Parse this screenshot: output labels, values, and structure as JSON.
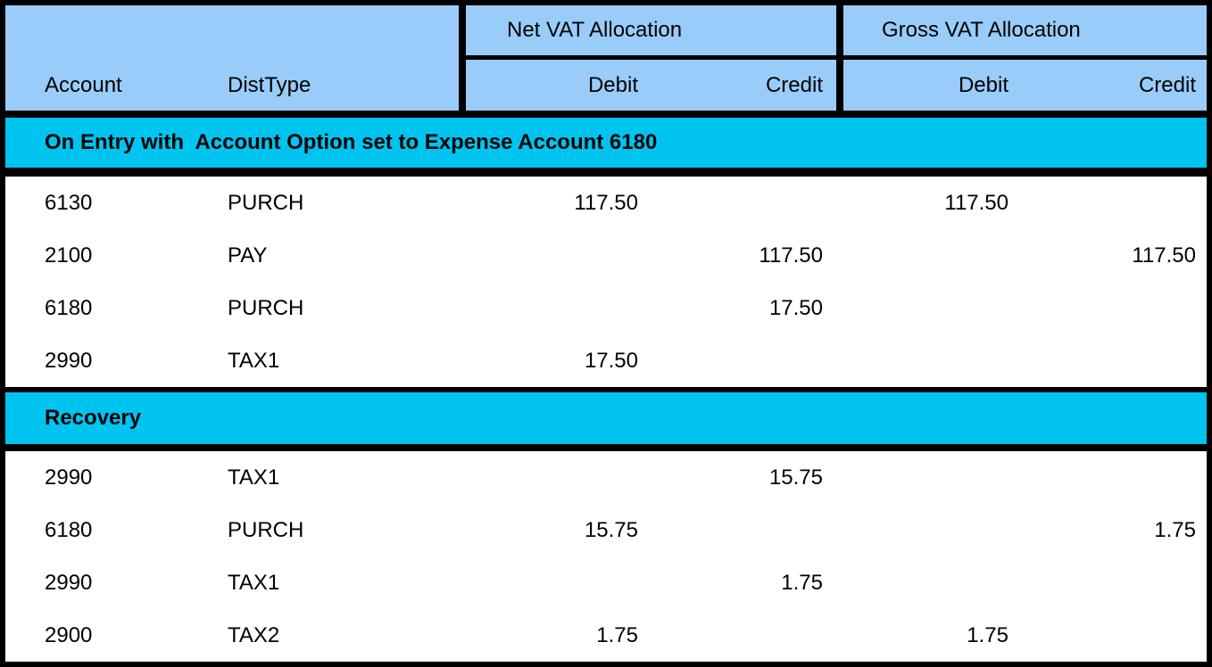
{
  "table": {
    "column_groups": {
      "net": "Net VAT Allocation",
      "gross": "Gross VAT Allocation"
    },
    "columns": {
      "account": "Account",
      "dist_type": "DistType",
      "net_debit": "Debit",
      "net_credit": "Credit",
      "gross_debit": "Debit",
      "gross_credit": "Credit"
    },
    "sections": [
      {
        "title": "On Entry with  Account Option set to Expense Account 6180",
        "rows": [
          {
            "account": "6130",
            "dist_type": "PURCH",
            "net_debit": "117.50",
            "net_credit": "",
            "gross_debit": "117.50",
            "gross_credit": ""
          },
          {
            "account": "2100",
            "dist_type": "PAY",
            "net_debit": "",
            "net_credit": "117.50",
            "gross_debit": "",
            "gross_credit": "117.50"
          },
          {
            "account": "6180",
            "dist_type": "PURCH",
            "net_debit": "",
            "net_credit": "17.50",
            "gross_debit": "",
            "gross_credit": ""
          },
          {
            "account": "2990",
            "dist_type": "TAX1",
            "net_debit": "17.50",
            "net_credit": "",
            "gross_debit": "",
            "gross_credit": ""
          }
        ]
      },
      {
        "title": "Recovery",
        "rows": [
          {
            "account": "2990",
            "dist_type": "TAX1",
            "net_debit": "",
            "net_credit": "15.75",
            "gross_debit": "",
            "gross_credit": ""
          },
          {
            "account": "6180",
            "dist_type": "PURCH",
            "net_debit": "15.75",
            "net_credit": "",
            "gross_debit": "",
            "gross_credit": "1.75"
          },
          {
            "account": "2990",
            "dist_type": "TAX1",
            "net_debit": "",
            "net_credit": "1.75",
            "gross_debit": "",
            "gross_credit": ""
          },
          {
            "account": "2900",
            "dist_type": "TAX2",
            "net_debit": "1.75",
            "net_credit": "",
            "gross_debit": "1.75",
            "gross_credit": ""
          }
        ]
      }
    ],
    "colors": {
      "header_background": "#99ccf9",
      "section_background": "#00c4f0",
      "border": "#000000",
      "row_background": "#ffffff",
      "text": "#000000"
    }
  }
}
